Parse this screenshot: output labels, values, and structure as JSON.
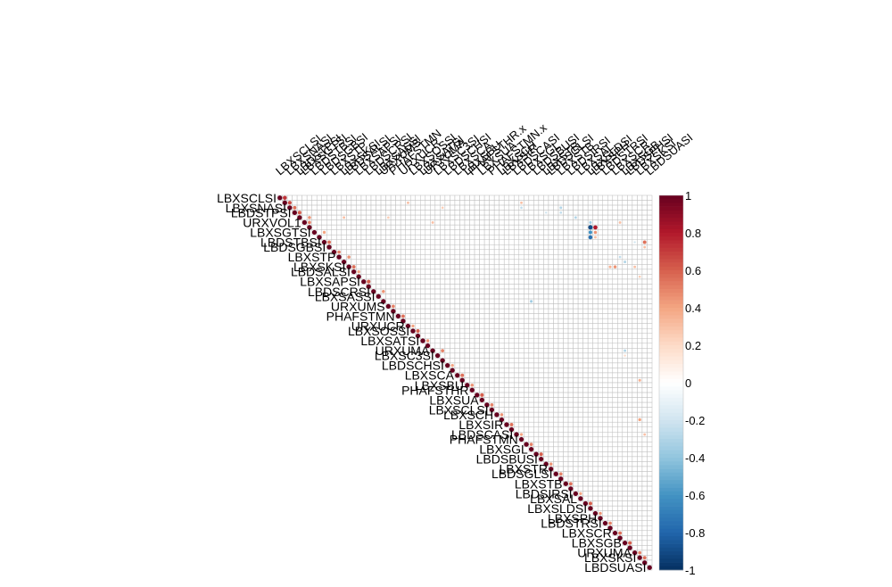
{
  "chart_data": {
    "type": "heatmap",
    "subtype": "correlation-matrix-upper",
    "method": "circle",
    "n_variables": 76,
    "row_labels_visible": [
      "LBXSCLSI",
      "LBXSNASI",
      "LBDSTPSI",
      "URXVOL1",
      "LBXSGTSI",
      "LBDSTBSI",
      "LBDSGBSI",
      "LBXSTP",
      "LBXSKSI",
      "LBDSALSI",
      "LBXSAPSI",
      "LBDSCRSI",
      "LBXSASSI",
      "URXUMS",
      "PHAFSTMN",
      "URXUCR",
      "LBXSOSSI",
      "LBXSATSI",
      "URXUMA",
      "LBXSC3SI",
      "LBDSCHSI",
      "LBXSCA",
      "LBXSBU",
      "PHAFSTHR",
      "LBXSUA",
      "LBXSCLSI",
      "LBXSCH",
      "LBXSIR",
      "LBDSCASI",
      "PHAFSTMN",
      "LBXSGL",
      "LBDSBUSI",
      "LBXSTR",
      "LBDSGLSI",
      "LBXSTB",
      "LBDSIRSI",
      "LBXSAL",
      "LBXSLDSI",
      "LBXSPH",
      "LBDSTRSI",
      "LBXSCR",
      "LBXSGB",
      "URXUMA",
      "LBXSKSI",
      "LBDSUASI"
    ],
    "column_labels_visible": [
      "LBXSCLSI",
      "LBXSNASI",
      "LBDSTPSI",
      "LBXSGTSI",
      "LBDSTBSI",
      "LBDSGBSI",
      "LBXSTP",
      "LBXSKSI",
      "LBDSALSI",
      "LBXSAPSI",
      "LBDSCRSI",
      "LBXSASSI",
      "URXUMS",
      "PHAFSTMN",
      "URXUCR",
      "LBXSOSSI",
      "LBXSATSI",
      "URXUMA",
      "LBXSC3SI",
      "LBDSCHSI",
      "LBXSCA",
      "LBXSBU",
      "PHAFSTHR.x",
      "LBXSUA",
      "PHAFSTMN.x",
      "LBXSCH",
      "LBXSIR",
      "LBDSCASI",
      "LBXSGL",
      "LBDSBUSI",
      "LBXSTR",
      "LBDSGLSI",
      "LBXSTB",
      "LBDSIRSI",
      "LBXSAL",
      "LBXSLDSI",
      "LBXSPH",
      "LBDSTRSI",
      "LBXSCR",
      "LBXSGB",
      "LBDSPHSI",
      "LBXSKSI",
      "LBDSUASI"
    ],
    "legend": {
      "placement": "right",
      "range": [
        -1,
        1
      ],
      "ticks": [
        "1",
        "0.8",
        "0.6",
        "0.4",
        "0.2",
        "0",
        "-0.2",
        "-0.4",
        "-0.6",
        "-0.8",
        "-1"
      ],
      "colors": [
        "#67001F",
        "#B2182B",
        "#D6604D",
        "#F4A582",
        "#FDDBC7",
        "#FFFFFF",
        "#D1E5F0",
        "#92C5DE",
        "#4393C3",
        "#2166AC",
        "#053061"
      ]
    },
    "diagonal_value": 1,
    "offdiag_notable": [
      {
        "row": 0,
        "col": 1,
        "value": 0.72
      },
      {
        "row": 1,
        "col": 2,
        "value": 0.65
      },
      {
        "row": 2,
        "col": 3,
        "value": 0.55
      },
      {
        "row": 3,
        "col": 4,
        "value": 0.6
      },
      {
        "row": 4,
        "col": 6,
        "value": 0.45
      },
      {
        "row": 5,
        "col": 6,
        "value": 0.5
      },
      {
        "row": 7,
        "col": 9,
        "value": 0.4
      },
      {
        "row": 9,
        "col": 10,
        "value": 0.55
      },
      {
        "row": 11,
        "col": 12,
        "value": 0.5
      },
      {
        "row": 12,
        "col": 14,
        "value": 0.45
      },
      {
        "row": 14,
        "col": 15,
        "value": 0.55
      },
      {
        "row": 15,
        "col": 16,
        "value": 0.4
      },
      {
        "row": 17,
        "col": 18,
        "value": 0.6
      },
      {
        "row": 19,
        "col": 21,
        "value": 0.45
      },
      {
        "row": 22,
        "col": 23,
        "value": 0.5
      },
      {
        "row": 24,
        "col": 25,
        "value": 0.55
      },
      {
        "row": 26,
        "col": 27,
        "value": 0.4
      },
      {
        "row": 27,
        "col": 28,
        "value": 0.6
      },
      {
        "row": 29,
        "col": 30,
        "value": 0.45
      },
      {
        "row": 31,
        "col": 33,
        "value": 0.5
      },
      {
        "row": 34,
        "col": 35,
        "value": 0.4
      },
      {
        "row": 36,
        "col": 37,
        "value": 0.55
      },
      {
        "row": 38,
        "col": 39,
        "value": 0.45
      },
      {
        "row": 40,
        "col": 41,
        "value": 0.6
      },
      {
        "row": 42,
        "col": 43,
        "value": 0.5
      },
      {
        "row": 44,
        "col": 45,
        "value": 0.45
      },
      {
        "row": 46,
        "col": 47,
        "value": 0.55
      },
      {
        "row": 48,
        "col": 49,
        "value": 0.4
      },
      {
        "row": 50,
        "col": 51,
        "value": 0.5
      },
      {
        "row": 52,
        "col": 53,
        "value": 0.6
      },
      {
        "row": 54,
        "col": 55,
        "value": 0.45
      },
      {
        "row": 56,
        "col": 57,
        "value": 0.5
      },
      {
        "row": 58,
        "col": 59,
        "value": 0.55
      },
      {
        "row": 60,
        "col": 61,
        "value": 0.4
      },
      {
        "row": 62,
        "col": 63,
        "value": 0.6
      },
      {
        "row": 64,
        "col": 65,
        "value": 0.45
      },
      {
        "row": 66,
        "col": 67,
        "value": 0.5
      },
      {
        "row": 68,
        "col": 69,
        "value": 0.55
      },
      {
        "row": 70,
        "col": 71,
        "value": 0.6
      },
      {
        "row": 72,
        "col": 73,
        "value": 0.5
      },
      {
        "row": 73,
        "col": 74,
        "value": 0.55
      },
      {
        "row": 6,
        "col": 63,
        "value": -0.9
      },
      {
        "row": 7,
        "col": 63,
        "value": -0.6
      },
      {
        "row": 6,
        "col": 64,
        "value": 0.8
      },
      {
        "row": 8,
        "col": 63,
        "value": -0.75
      },
      {
        "row": 7,
        "col": 64,
        "value": 0.45
      },
      {
        "row": 5,
        "col": 63,
        "value": -0.35
      },
      {
        "row": 4,
        "col": 60,
        "value": -0.3
      },
      {
        "row": 3,
        "col": 54,
        "value": -0.2
      },
      {
        "row": 1,
        "col": 26,
        "value": 0.3
      },
      {
        "row": 2,
        "col": 33,
        "value": 0.25
      },
      {
        "row": 1,
        "col": 49,
        "value": 0.3
      },
      {
        "row": 2,
        "col": 49,
        "value": -0.25
      },
      {
        "row": 2,
        "col": 57,
        "value": -0.3
      },
      {
        "row": 3,
        "col": 57,
        "value": -0.25
      },
      {
        "row": 8,
        "col": 64,
        "value": 0.3
      },
      {
        "row": 5,
        "col": 69,
        "value": 0.3
      },
      {
        "row": 14,
        "col": 67,
        "value": 0.35
      },
      {
        "row": 13,
        "col": 70,
        "value": -0.3
      },
      {
        "row": 14,
        "col": 68,
        "value": 0.45
      },
      {
        "row": 14,
        "col": 72,
        "value": 0.3
      },
      {
        "row": 12,
        "col": 69,
        "value": -0.25
      },
      {
        "row": 16,
        "col": 73,
        "value": 0.25
      },
      {
        "row": 21,
        "col": 51,
        "value": -0.35
      },
      {
        "row": 9,
        "col": 74,
        "value": 0.55
      },
      {
        "row": 9,
        "col": 72,
        "value": -0.2
      },
      {
        "row": 10,
        "col": 74,
        "value": 0.3
      },
      {
        "row": 4,
        "col": 13,
        "value": 0.3
      },
      {
        "row": 4,
        "col": 22,
        "value": 0.25
      },
      {
        "row": 5,
        "col": 31,
        "value": 0.3
      },
      {
        "row": 31,
        "col": 70,
        "value": -0.3
      },
      {
        "row": 32,
        "col": 70,
        "value": 0.2
      },
      {
        "row": 37,
        "col": 73,
        "value": 0.35
      },
      {
        "row": 45,
        "col": 73,
        "value": 0.4
      },
      {
        "row": 48,
        "col": 74,
        "value": 0.3
      }
    ]
  }
}
